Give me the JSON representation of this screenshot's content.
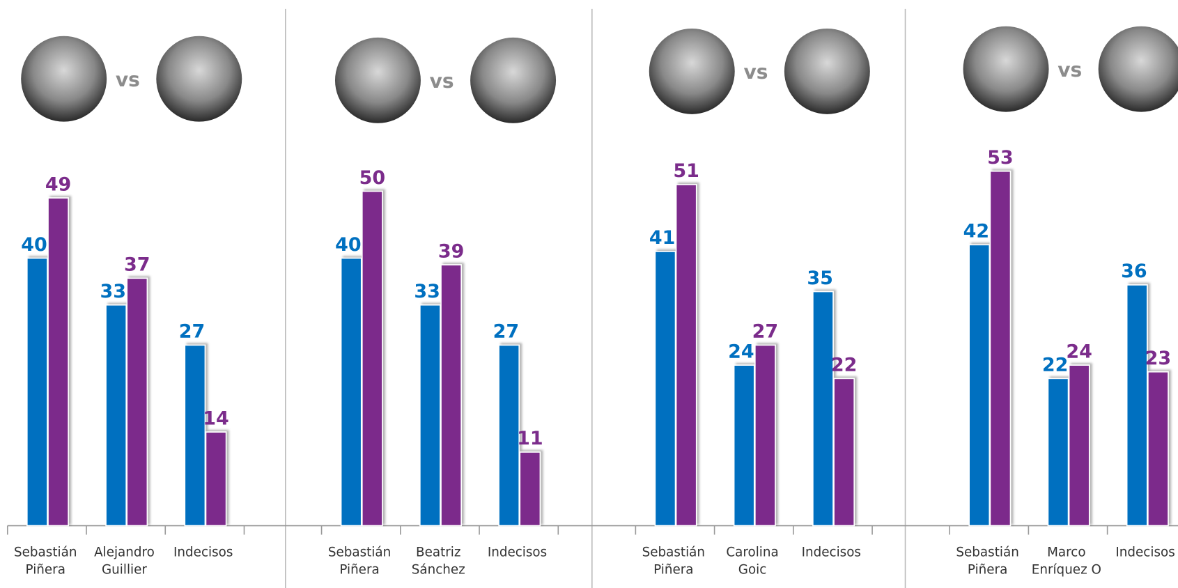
{
  "chart_data": [
    {
      "type": "bar",
      "versus": "vs",
      "categories": [
        "Sebastián\nPiñera",
        "Alejandro\nGuillier",
        "Indecisos"
      ],
      "series": [
        {
          "color": "#0070c0",
          "values": [
            40,
            33,
            27
          ]
        },
        {
          "color": "#7b2c8b",
          "values": [
            49,
            37,
            14
          ]
        }
      ],
      "ylim": [
        0,
        78.6
      ]
    },
    {
      "type": "bar",
      "versus": "vs",
      "categories": [
        "Sebastián\nPiñera",
        "Beatriz\nSánchez",
        "Indecisos"
      ],
      "series": [
        {
          "color": "#0070c0",
          "values": [
            40,
            33,
            27
          ]
        },
        {
          "color": "#7b2c8b",
          "values": [
            50,
            39,
            11
          ]
        }
      ],
      "ylim": [
        0,
        78.6
      ]
    },
    {
      "type": "bar",
      "versus": "vs",
      "categories": [
        "Sebastián\nPiñera",
        "Carolina\nGoic",
        "Indecisos"
      ],
      "series": [
        {
          "color": "#0070c0",
          "values": [
            41,
            24,
            35
          ]
        },
        {
          "color": "#7b2c8b",
          "values": [
            51,
            27,
            22
          ]
        }
      ],
      "ylim": [
        0,
        78.6
      ]
    },
    {
      "type": "bar",
      "versus": "vs",
      "categories": [
        "Sebastián\nPiñera",
        "Marco\nEnríquez O",
        "Indecisos"
      ],
      "series": [
        {
          "color": "#0070c0",
          "values": [
            42,
            22,
            36
          ]
        },
        {
          "color": "#7b2c8b",
          "values": [
            53,
            24,
            23
          ]
        }
      ],
      "ylim": [
        0,
        78.6
      ]
    }
  ]
}
